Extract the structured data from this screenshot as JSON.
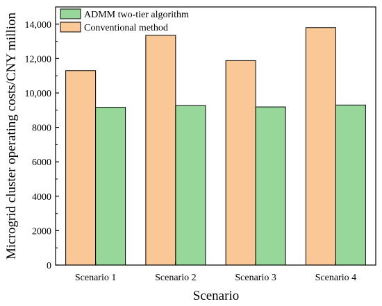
{
  "chart_data": {
    "type": "bar",
    "xlabel": "Scenario",
    "ylabel": "Microgrid cluster operating costs/CNY million",
    "categories": [
      "Scenario 1",
      "Scenario 2",
      "Scenario 3",
      "Scenario 4"
    ],
    "series": [
      {
        "name": "Conventional method",
        "color": "#FAC896",
        "values": [
          11300,
          13350,
          11880,
          13800
        ]
      },
      {
        "name": "ADMM two-tier algorithm",
        "color": "#98D79A",
        "values": [
          9170,
          9270,
          9190,
          9300
        ]
      }
    ],
    "ylim": [
      0,
      15000
    ],
    "yticks": [
      "0",
      "2000",
      "4000",
      "6000",
      "8000",
      "10,000",
      "12,000",
      "14,000"
    ],
    "ytick_values": [
      0,
      2000,
      4000,
      6000,
      8000,
      10000,
      12000,
      14000
    ],
    "legend": {
      "position": "top-left",
      "order": [
        "ADMM two-tier algorithm",
        "Conventional method"
      ]
    },
    "grid": false
  }
}
